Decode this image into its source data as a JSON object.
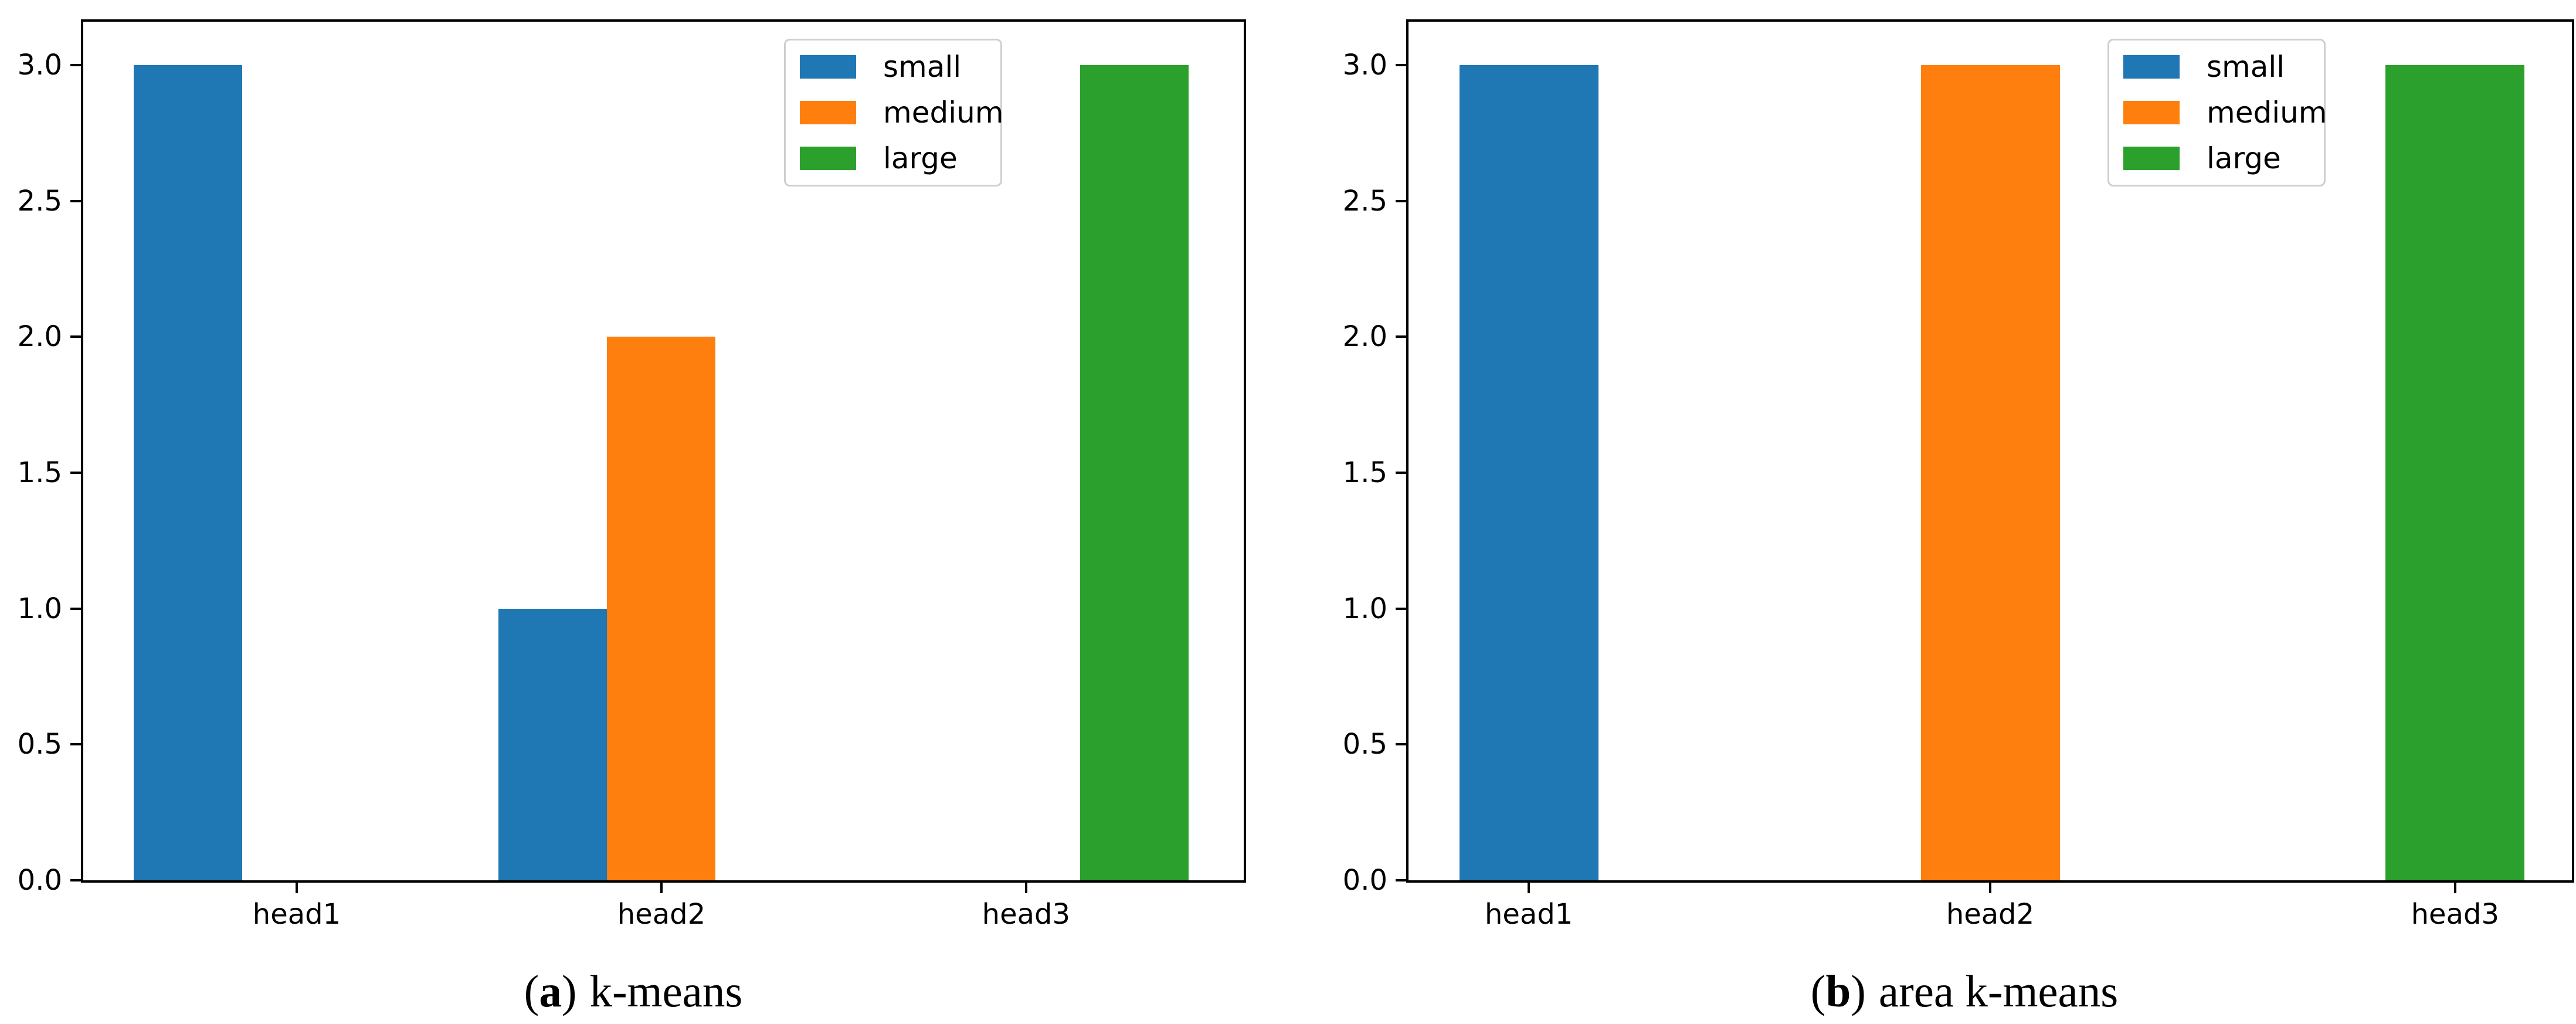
{
  "chart_data": [
    {
      "type": "bar",
      "caption": {
        "open": "(",
        "label": "a",
        "close": ")",
        "text": "k-means"
      },
      "categories": [
        "head1",
        "head2",
        "head3"
      ],
      "series": [
        {
          "name": "small",
          "color": "#1f77b4",
          "values": [
            3,
            1,
            0
          ]
        },
        {
          "name": "medium",
          "color": "#ff7f0e",
          "values": [
            0,
            2,
            0
          ]
        },
        {
          "name": "large",
          "color": "#2ca02c",
          "values": [
            0,
            0,
            3
          ]
        }
      ],
      "bar_mode": "grouped",
      "xlabel": "",
      "ylabel": "",
      "ylim": [
        0,
        3.16
      ],
      "yticks": [
        "0.0",
        "0.5",
        "1.0",
        "1.5",
        "2.0",
        "2.5",
        "3.0"
      ],
      "grid": false,
      "legend": {
        "position": "upper right inside",
        "labels": [
          "small",
          "medium",
          "large"
        ]
      }
    },
    {
      "type": "bar",
      "caption": {
        "open": "(",
        "label": "b",
        "close": ")",
        "text": "area k-means"
      },
      "categories": [
        "head1",
        "head2",
        "head3"
      ],
      "series": [
        {
          "name": "small",
          "color": "#1f77b4",
          "values": [
            3,
            0,
            0
          ]
        },
        {
          "name": "medium",
          "color": "#ff7f0e",
          "values": [
            0,
            3,
            0
          ]
        },
        {
          "name": "large",
          "color": "#2ca02c",
          "values": [
            0,
            0,
            3
          ]
        }
      ],
      "bar_mode": "centered",
      "xlabel": "",
      "ylabel": "",
      "ylim": [
        0,
        3.16
      ],
      "yticks": [
        "0.0",
        "0.5",
        "1.0",
        "1.5",
        "2.0",
        "2.5",
        "3.0"
      ],
      "grid": false,
      "legend": {
        "position": "upper right inside",
        "labels": [
          "small",
          "medium",
          "large"
        ]
      }
    }
  ]
}
